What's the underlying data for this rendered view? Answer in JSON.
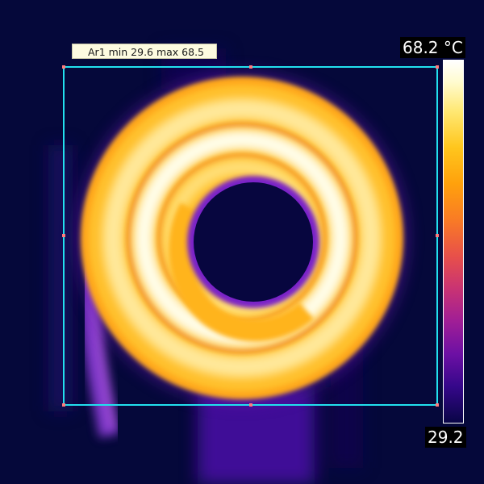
{
  "roi": {
    "label": "Ar1 min 29.6 max 68.5",
    "color": "#22e0ee",
    "handle_color": "#ff7b7b"
  },
  "scale": {
    "max_label": "68.2 °C",
    "min_label": "29.2",
    "max_value": 68.2,
    "min_value": 29.2,
    "unit": "°C",
    "palette": "iron"
  },
  "colors": {
    "background": "#05083a",
    "hot": "#ffffff",
    "warm": "#ffc21d",
    "mid": "#ff9a14",
    "cool": "#7a20d8",
    "cold": "#05083a"
  }
}
